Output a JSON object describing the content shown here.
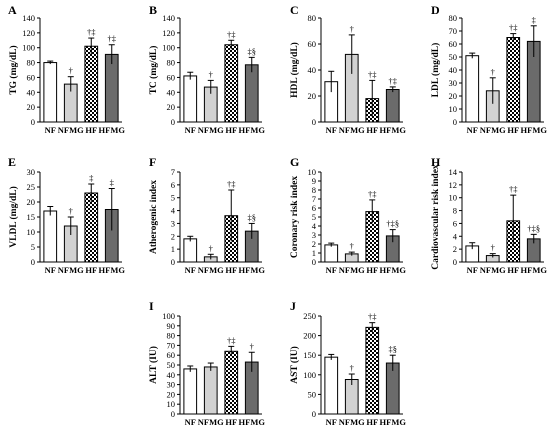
{
  "chart_data": [
    {
      "panel": "A",
      "type": "bar",
      "ylabel": "TG (mg/dL)",
      "ylim": [
        0,
        140
      ],
      "yticks": [
        "0",
        "20",
        "40",
        "60",
        "80",
        "100",
        "120",
        "140"
      ],
      "categories": [
        "NF",
        "NFMG",
        "HF",
        "HFMG"
      ],
      "values": [
        80,
        51,
        102,
        91
      ],
      "errors": [
        2,
        10,
        11,
        13
      ],
      "annotations": [
        "",
        "†",
        "†‡",
        "†‡"
      ]
    },
    {
      "panel": "B",
      "type": "bar",
      "ylabel": "TC (mg/dL)",
      "ylim": [
        0,
        140
      ],
      "yticks": [
        "0",
        "20",
        "40",
        "60",
        "80",
        "100",
        "120",
        "140"
      ],
      "categories": [
        "NF",
        "NFMG",
        "HF",
        "HFMG"
      ],
      "values": [
        62,
        47,
        104,
        77
      ],
      "errors": [
        5,
        9,
        6,
        10
      ],
      "annotations": [
        "",
        "†",
        "†‡",
        "‡§"
      ]
    },
    {
      "panel": "C",
      "type": "bar",
      "ylabel": "HDL (mg/dL)",
      "ylim": [
        0,
        80
      ],
      "yticks": [
        "0",
        "20",
        "40",
        "60",
        "80"
      ],
      "categories": [
        "NF",
        "NFMG",
        "HF",
        "HFMG"
      ],
      "values": [
        31,
        52,
        18,
        25
      ],
      "errors": [
        8,
        15,
        14,
        2
      ],
      "annotations": [
        "",
        "†",
        "†‡",
        "†‡"
      ]
    },
    {
      "panel": "D",
      "type": "bar",
      "ylabel": "LDL (mg/dL)",
      "ylim": [
        0,
        80
      ],
      "yticks": [
        "0",
        "10",
        "20",
        "30",
        "40",
        "50",
        "60",
        "70",
        "80"
      ],
      "categories": [
        "NF",
        "NFMG",
        "HF",
        "HFMG"
      ],
      "values": [
        51,
        24,
        65,
        62
      ],
      "errors": [
        2,
        10,
        3,
        12
      ],
      "annotations": [
        "",
        "†",
        "†‡",
        "‡"
      ]
    },
    {
      "panel": "E",
      "type": "bar",
      "ylabel": "VLDL (mg/dL)",
      "ylim": [
        0,
        30
      ],
      "yticks": [
        "0",
        "5",
        "10",
        "15",
        "20",
        "25",
        "30"
      ],
      "categories": [
        "NF",
        "NFMG",
        "HF",
        "HFMG"
      ],
      "values": [
        17,
        12,
        23,
        17.5
      ],
      "errors": [
        1.5,
        3,
        3,
        7
      ],
      "annotations": [
        "",
        "†",
        "‡",
        "‡"
      ]
    },
    {
      "panel": "F",
      "type": "bar",
      "ylabel": "Atherogenic index",
      "ylim": [
        0,
        7
      ],
      "yticks": [
        "0",
        "1",
        "2",
        "3",
        "4",
        "5",
        "6",
        "7"
      ],
      "categories": [
        "NF",
        "NFMG",
        "HF",
        "HFMG"
      ],
      "values": [
        1.8,
        0.4,
        3.6,
        2.4
      ],
      "errors": [
        0.2,
        0.2,
        2.0,
        0.6
      ],
      "annotations": [
        "",
        "†",
        "†‡",
        "‡§"
      ]
    },
    {
      "panel": "G",
      "type": "bar",
      "ylabel": "Coronary risk index",
      "ylim": [
        0,
        10
      ],
      "yticks": [
        "0",
        "1",
        "2",
        "3",
        "4",
        "5",
        "6",
        "7",
        "8",
        "9",
        "10"
      ],
      "categories": [
        "NF",
        "NFMG",
        "HF",
        "HFMG"
      ],
      "values": [
        1.9,
        0.9,
        5.6,
        2.9
      ],
      "errors": [
        0.2,
        0.2,
        1.3,
        0.7
      ],
      "annotations": [
        "",
        "†",
        "†‡",
        "†‡§"
      ]
    },
    {
      "panel": "H",
      "type": "bar",
      "ylabel": "Cardiovascular risk index",
      "ylim": [
        0,
        14
      ],
      "yticks": [
        "0",
        "2",
        "4",
        "6",
        "8",
        "10",
        "12",
        "14"
      ],
      "categories": [
        "NF",
        "NFMG",
        "HF",
        "HFMG"
      ],
      "values": [
        2.5,
        1.0,
        6.4,
        3.6
      ],
      "errors": [
        0.5,
        0.3,
        4.0,
        0.7
      ],
      "annotations": [
        "",
        "†",
        "†‡",
        "†‡§"
      ]
    },
    {
      "panel": "I",
      "type": "bar",
      "ylabel": "ALT (IU)",
      "ylim": [
        0,
        100
      ],
      "yticks": [
        "0",
        "10",
        "20",
        "30",
        "40",
        "50",
        "60",
        "70",
        "80",
        "90",
        "100"
      ],
      "categories": [
        "NF",
        "NFMG",
        "HF",
        "HFMG"
      ],
      "values": [
        46,
        48,
        64,
        53
      ],
      "errors": [
        3,
        4,
        5,
        10
      ],
      "annotations": [
        "",
        "",
        "†‡",
        "†"
      ]
    },
    {
      "panel": "J",
      "type": "bar",
      "ylabel": "AST (IU)",
      "ylim": [
        0,
        250
      ],
      "yticks": [
        "0",
        "50",
        "100",
        "150",
        "200",
        "250"
      ],
      "categories": [
        "NF",
        "NFMG",
        "HF",
        "HFMG"
      ],
      "values": [
        145,
        88,
        221,
        130
      ],
      "errors": [
        7,
        14,
        12,
        20
      ],
      "annotations": [
        "",
        "†",
        "†‡",
        "‡§"
      ]
    }
  ],
  "colors": {
    "NF": "#ffffff",
    "NFMG": "#d2d2d2",
    "HF": "checkerboard-black-white",
    "HFMG": "#6b6b6b",
    "stroke": "#000000"
  }
}
